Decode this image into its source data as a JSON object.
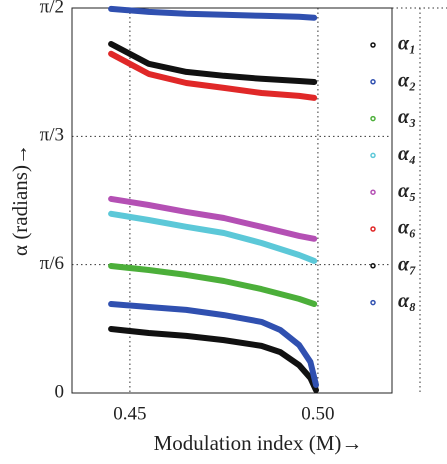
{
  "chart_data": {
    "type": "line",
    "xlabel": "Modulation index (M)→",
    "ylabel": "α (radians)→",
    "xlim": [
      0.4346,
      0.5197
    ],
    "ylim": [
      0,
      1.5708
    ],
    "xticks": [
      0.45,
      {
        "value": 0.5,
        "label": "0.50"
      }
    ],
    "yticks": [
      0,
      {
        "value": 0.5236,
        "label": "π/6"
      },
      {
        "value": 1.0472,
        "label": "π/3"
      },
      {
        "value": 1.5708,
        "label": "π/2"
      }
    ],
    "grid": true,
    "legend": "right",
    "series": [
      {
        "name": "α₁",
        "color": "#111111",
        "x": [
          0.445,
          0.455,
          0.465,
          0.475,
          0.485,
          0.495,
          0.499
        ],
        "values": [
          1.424,
          1.343,
          1.31,
          1.294,
          1.282,
          1.273,
          1.269
        ]
      },
      {
        "name": "α₂",
        "color": "#3050b0",
        "x": [
          0.445,
          0.455,
          0.465,
          0.475,
          0.485,
          0.495,
          0.499
        ],
        "values": [
          1.567,
          1.555,
          1.547,
          1.543,
          1.539,
          1.535,
          1.531
        ]
      },
      {
        "name": "α₃",
        "color": "#4caf3a",
        "x": [
          0.445,
          0.455,
          0.465,
          0.475,
          0.485,
          0.495,
          0.499
        ],
        "values": [
          0.518,
          0.502,
          0.482,
          0.457,
          0.424,
          0.384,
          0.363
        ]
      },
      {
        "name": "α₄",
        "color": "#5cc8d8",
        "x": [
          0.445,
          0.455,
          0.465,
          0.475,
          0.485,
          0.495,
          0.499
        ],
        "values": [
          0.731,
          0.706,
          0.678,
          0.653,
          0.612,
          0.563,
          0.539
        ]
      },
      {
        "name": "α₅",
        "color": "#b450b4",
        "x": [
          0.445,
          0.455,
          0.465,
          0.475,
          0.485,
          0.495,
          0.499
        ],
        "values": [
          0.792,
          0.767,
          0.739,
          0.714,
          0.678,
          0.641,
          0.629
        ]
      },
      {
        "name": "α₆",
        "color": "#e02828",
        "x": [
          0.445,
          0.455,
          0.465,
          0.475,
          0.485,
          0.495,
          0.499
        ],
        "values": [
          1.384,
          1.302,
          1.265,
          1.245,
          1.224,
          1.212,
          1.204
        ]
      },
      {
        "name": "α₇",
        "color": "#111111",
        "x": [
          0.445,
          0.455,
          0.465,
          0.475,
          0.485,
          0.49,
          0.495,
          0.498,
          0.4995
        ],
        "values": [
          0.261,
          0.245,
          0.233,
          0.216,
          0.192,
          0.167,
          0.114,
          0.061,
          0.012
        ]
      },
      {
        "name": "α₈",
        "color": "#3050b0",
        "x": [
          0.445,
          0.455,
          0.465,
          0.475,
          0.485,
          0.49,
          0.495,
          0.498,
          0.4995
        ],
        "values": [
          0.363,
          0.351,
          0.339,
          0.318,
          0.29,
          0.257,
          0.196,
          0.127,
          0.033
        ]
      }
    ]
  }
}
